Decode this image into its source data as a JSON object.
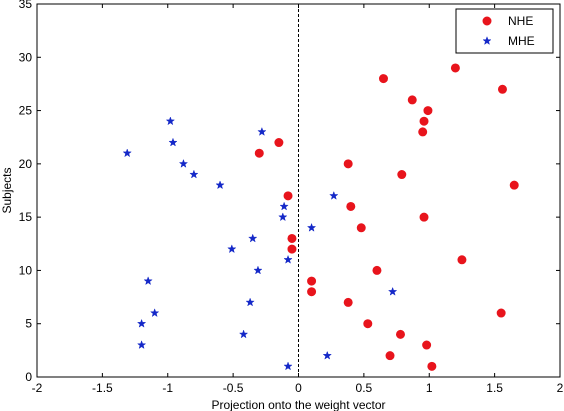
{
  "chart_data": {
    "type": "scatter",
    "xlabel": "Projection onto the weight vector",
    "ylabel": "Subjects",
    "xlim": [
      -2,
      2
    ],
    "ylim": [
      0,
      35
    ],
    "xticks": [
      "-2",
      "-1.5",
      "-1",
      "-0.5",
      "0",
      "0.5",
      "1",
      "1.5",
      "2"
    ],
    "yticks": [
      "0",
      "5",
      "10",
      "15",
      "20",
      "25",
      "30",
      "35"
    ],
    "grid": false,
    "legend_position": "top-right",
    "reference_line": {
      "x": 0,
      "style": "dashed"
    },
    "series": [
      {
        "name": "NHE",
        "marker": "circle",
        "color": "#e8141c",
        "points": [
          [
            1.02,
            1
          ],
          [
            0.7,
            2
          ],
          [
            0.98,
            3
          ],
          [
            0.78,
            4
          ],
          [
            0.53,
            5
          ],
          [
            1.55,
            6
          ],
          [
            0.38,
            7
          ],
          [
            0.1,
            8
          ],
          [
            0.1,
            9
          ],
          [
            0.6,
            10
          ],
          [
            1.25,
            11
          ],
          [
            -0.05,
            12
          ],
          [
            -0.05,
            13
          ],
          [
            0.48,
            14
          ],
          [
            0.96,
            15
          ],
          [
            0.4,
            16
          ],
          [
            -0.08,
            17
          ],
          [
            1.65,
            18
          ],
          [
            0.79,
            19
          ],
          [
            0.38,
            20
          ],
          [
            -0.3,
            21
          ],
          [
            -0.15,
            22
          ],
          [
            0.95,
            23
          ],
          [
            0.96,
            24
          ],
          [
            0.99,
            25
          ],
          [
            0.87,
            26
          ],
          [
            1.56,
            27
          ],
          [
            0.65,
            28
          ],
          [
            1.2,
            29
          ]
        ]
      },
      {
        "name": "MHE",
        "marker": "star",
        "color": "#1428c8",
        "points": [
          [
            -0.08,
            1
          ],
          [
            0.22,
            2
          ],
          [
            -1.2,
            3
          ],
          [
            -0.42,
            4
          ],
          [
            -1.2,
            5
          ],
          [
            -1.1,
            6
          ],
          [
            -0.37,
            7
          ],
          [
            0.72,
            8
          ],
          [
            -1.15,
            9
          ],
          [
            -0.31,
            10
          ],
          [
            -0.08,
            11
          ],
          [
            -0.51,
            12
          ],
          [
            -0.35,
            13
          ],
          [
            0.1,
            14
          ],
          [
            -0.12,
            15
          ],
          [
            -0.11,
            16
          ],
          [
            0.27,
            17
          ],
          [
            -0.6,
            18
          ],
          [
            -0.8,
            19
          ],
          [
            -0.88,
            20
          ],
          [
            -1.31,
            21
          ],
          [
            -0.96,
            22
          ],
          [
            -0.28,
            23
          ],
          [
            -0.98,
            24
          ]
        ]
      }
    ]
  }
}
